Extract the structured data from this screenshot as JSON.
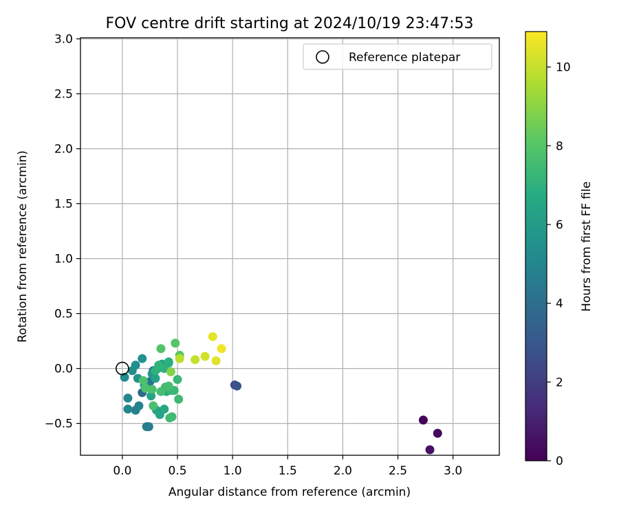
{
  "chart_data": {
    "type": "scatter",
    "title": "FOV centre drift starting at 2024/10/19 23:47:53",
    "xlabel": "Angular distance from reference (arcmin)",
    "ylabel": "Rotation from reference (arcmin)",
    "xlim": [
      -0.38,
      3.42
    ],
    "ylim": [
      -0.79,
      3.01
    ],
    "xticks": [
      0.0,
      0.5,
      1.0,
      1.5,
      2.0,
      2.5,
      3.0
    ],
    "xtick_labels": [
      "0.0",
      "0.5",
      "1.0",
      "1.5",
      "2.0",
      "2.5",
      "3.0"
    ],
    "yticks": [
      -0.5,
      0.0,
      0.5,
      1.0,
      1.5,
      2.0,
      2.5,
      3.0
    ],
    "ytick_labels": [
      "−0.5",
      "0.0",
      "0.5",
      "1.0",
      "1.5",
      "2.0",
      "2.5",
      "3.0"
    ],
    "grid": true,
    "legend": {
      "location": "top-right",
      "entries": [
        "Reference platepar"
      ]
    },
    "reference_point": {
      "x": 0.0,
      "y": 0.0
    },
    "colorbar": {
      "label": "Hours from first FF file",
      "range": [
        0,
        10.9
      ],
      "ticks": [
        0,
        2,
        4,
        6,
        8,
        10
      ],
      "tick_labels": [
        "0",
        "2",
        "4",
        "6",
        "8",
        "10"
      ],
      "colormap": "viridis"
    },
    "points": [
      {
        "x": 2.73,
        "y": -0.47,
        "c": 0.1
      },
      {
        "x": 2.86,
        "y": -0.59,
        "c": 0.3
      },
      {
        "x": 2.79,
        "y": -0.74,
        "c": 0.5
      },
      {
        "x": 1.02,
        "y": -0.15,
        "c": 2.6
      },
      {
        "x": 1.04,
        "y": -0.16,
        "c": 2.8
      },
      {
        "x": 0.18,
        "y": -0.22,
        "c": 3.8
      },
      {
        "x": 0.25,
        "y": -0.12,
        "c": 4.0
      },
      {
        "x": 0.28,
        "y": -0.02,
        "c": 4.3
      },
      {
        "x": 0.22,
        "y": -0.53,
        "c": 4.6
      },
      {
        "x": 0.24,
        "y": -0.53,
        "c": 4.7
      },
      {
        "x": 0.12,
        "y": -0.38,
        "c": 4.8
      },
      {
        "x": 0.15,
        "y": -0.34,
        "c": 4.9
      },
      {
        "x": 0.05,
        "y": -0.37,
        "c": 5.0
      },
      {
        "x": 0.05,
        "y": -0.27,
        "c": 5.1
      },
      {
        "x": 0.02,
        "y": -0.08,
        "c": 5.2
      },
      {
        "x": 0.09,
        "y": -0.02,
        "c": 5.3
      },
      {
        "x": 0.12,
        "y": 0.03,
        "c": 5.4
      },
      {
        "x": 0.18,
        "y": 0.09,
        "c": 5.5
      },
      {
        "x": 0.14,
        "y": -0.09,
        "c": 5.6
      },
      {
        "x": 0.2,
        "y": -0.15,
        "c": 5.7
      },
      {
        "x": 0.27,
        "y": -0.05,
        "c": 5.8
      },
      {
        "x": 0.32,
        "y": 0.0,
        "c": 6.0
      },
      {
        "x": 0.36,
        "y": 0.04,
        "c": 6.1
      },
      {
        "x": 0.3,
        "y": -0.09,
        "c": 6.2
      },
      {
        "x": 0.26,
        "y": -0.25,
        "c": 6.3
      },
      {
        "x": 0.31,
        "y": -0.38,
        "c": 6.4
      },
      {
        "x": 0.34,
        "y": -0.42,
        "c": 6.5
      },
      {
        "x": 0.38,
        "y": -0.37,
        "c": 6.6
      },
      {
        "x": 0.4,
        "y": -0.21,
        "c": 6.7
      },
      {
        "x": 0.42,
        "y": 0.05,
        "c": 6.8
      },
      {
        "x": 0.42,
        "y": 0.06,
        "c": 6.9
      },
      {
        "x": 0.38,
        "y": 0.0,
        "c": 7.0
      },
      {
        "x": 0.3,
        "y": -0.02,
        "c": 7.0
      },
      {
        "x": 0.33,
        "y": 0.03,
        "c": 7.1
      },
      {
        "x": 0.44,
        "y": -0.2,
        "c": 7.2
      },
      {
        "x": 0.47,
        "y": -0.2,
        "c": 7.3
      },
      {
        "x": 0.5,
        "y": -0.1,
        "c": 7.3
      },
      {
        "x": 0.51,
        "y": -0.28,
        "c": 7.4
      },
      {
        "x": 0.45,
        "y": -0.44,
        "c": 7.4
      },
      {
        "x": 0.43,
        "y": -0.45,
        "c": 7.5
      },
      {
        "x": 0.39,
        "y": -0.17,
        "c": 7.5
      },
      {
        "x": 0.42,
        "y": -0.16,
        "c": 7.6
      },
      {
        "x": 0.35,
        "y": -0.21,
        "c": 7.6
      },
      {
        "x": 0.28,
        "y": -0.34,
        "c": 7.7
      },
      {
        "x": 0.27,
        "y": -0.19,
        "c": 7.7
      },
      {
        "x": 0.21,
        "y": -0.18,
        "c": 7.8
      },
      {
        "x": 0.19,
        "y": -0.11,
        "c": 7.8
      },
      {
        "x": 0.35,
        "y": 0.18,
        "c": 7.9
      },
      {
        "x": 0.48,
        "y": 0.23,
        "c": 8.0
      },
      {
        "x": 0.52,
        "y": 0.12,
        "c": 8.1
      },
      {
        "x": 0.44,
        "y": -0.03,
        "c": 8.8
      },
      {
        "x": 0.52,
        "y": 0.09,
        "c": 9.8
      },
      {
        "x": 0.66,
        "y": 0.08,
        "c": 10.0
      },
      {
        "x": 0.75,
        "y": 0.11,
        "c": 10.2
      },
      {
        "x": 0.85,
        "y": 0.07,
        "c": 10.4
      },
      {
        "x": 0.82,
        "y": 0.29,
        "c": 10.5
      },
      {
        "x": 0.9,
        "y": 0.18,
        "c": 10.7
      }
    ]
  }
}
